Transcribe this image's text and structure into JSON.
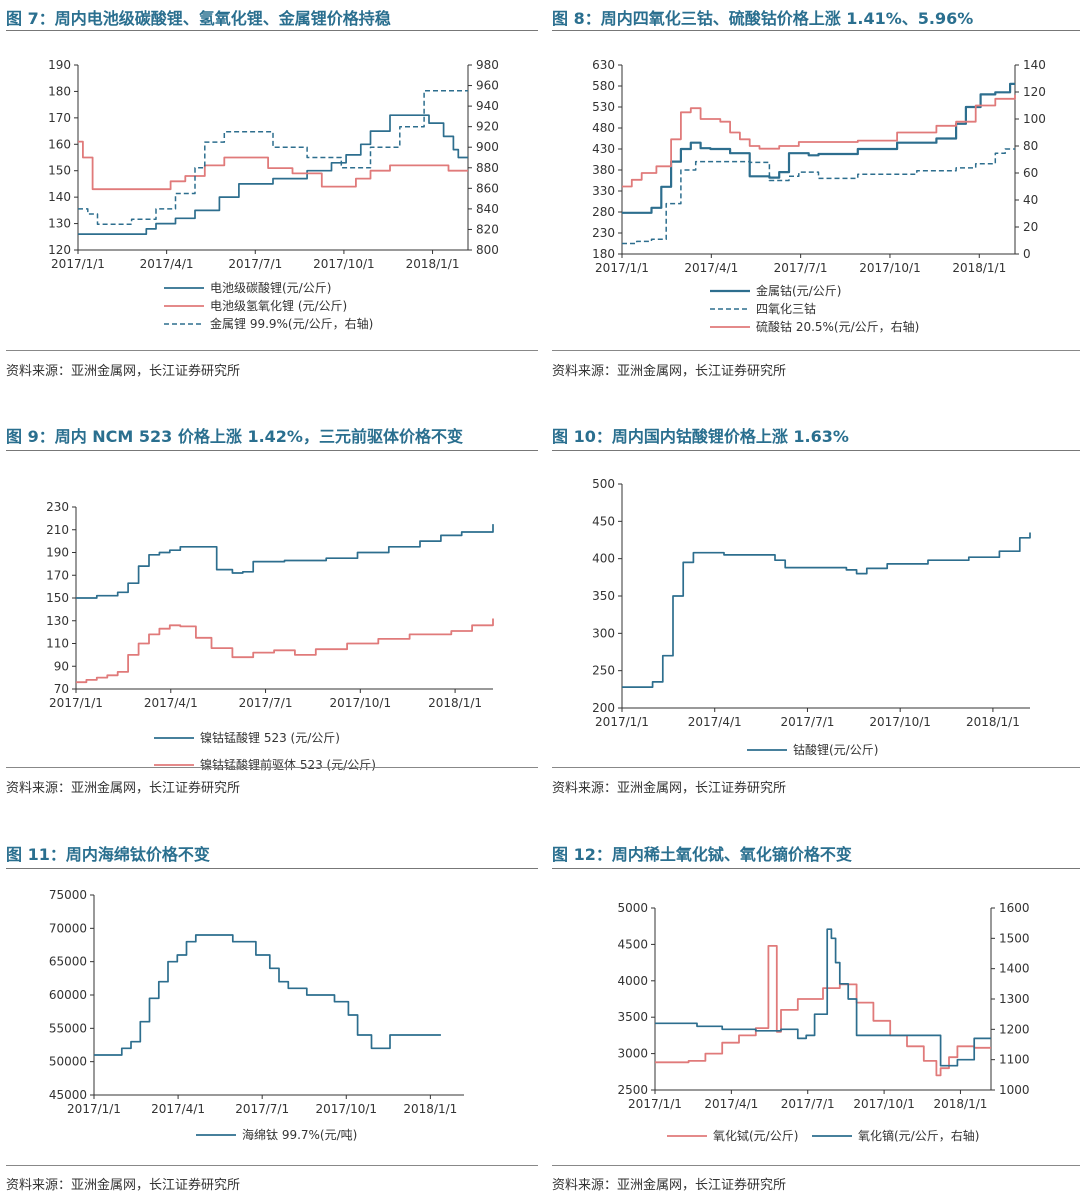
{
  "colors": {
    "blue": "#2d6e8e",
    "red": "#e07a7a",
    "title": "#2a6f8f",
    "axis": "#333333"
  },
  "source_text": "资料来源：亚洲金属网，长江证券研究所",
  "chart_data": [
    {
      "id": "fig7",
      "type": "line",
      "title": "图 7：周内电池级碳酸锂、氢氧化锂、金属锂价格持稳",
      "x_ticks": [
        "2017/1/1",
        "2017/4/1",
        "2017/7/1",
        "2017/10/1",
        "2018/1/1"
      ],
      "y_ticks": [
        "190",
        "180",
        "170",
        "160",
        "150",
        "140",
        "130",
        "120"
      ],
      "y2_ticks": [
        "980",
        "960",
        "940",
        "920",
        "900",
        "880",
        "860",
        "840",
        "820",
        "800"
      ],
      "ylim": [
        120,
        190
      ],
      "y2lim": [
        800,
        980
      ],
      "xlim": [
        0,
        400
      ],
      "series": [
        {
          "name": "电池级碳酸锂(元/公斤)",
          "axis": "left",
          "style": "blue",
          "x": [
            0,
            30,
            70,
            80,
            100,
            120,
            145,
            165,
            200,
            235,
            260,
            275,
            290,
            300,
            320,
            340,
            360,
            375,
            385,
            390,
            400
          ],
          "y": [
            126,
            126,
            128,
            130,
            132,
            135,
            140,
            145,
            147,
            150,
            153,
            156,
            160,
            165,
            171,
            171,
            168,
            163,
            158,
            155,
            155
          ]
        },
        {
          "name": "电池级氢氧化锂 (元/公斤)",
          "axis": "left",
          "style": "red",
          "x": [
            0,
            5,
            15,
            30,
            80,
            95,
            110,
            130,
            150,
            175,
            195,
            220,
            250,
            285,
            300,
            320,
            345,
            365,
            380,
            400
          ],
          "y": [
            161,
            155,
            143,
            143,
            143,
            146,
            148,
            152,
            155,
            155,
            151,
            149,
            144,
            147,
            150,
            152,
            152,
            152,
            150,
            150
          ]
        },
        {
          "name": "金属锂 99.9%(元/公斤，右轴)",
          "axis": "right",
          "style": "blue-dash",
          "x": [
            0,
            10,
            20,
            55,
            80,
            100,
            120,
            130,
            150,
            175,
            200,
            235,
            270,
            300,
            330,
            355,
            380,
            400
          ],
          "y": [
            840,
            835,
            825,
            830,
            840,
            855,
            880,
            905,
            915,
            915,
            900,
            890,
            880,
            900,
            920,
            955,
            955,
            955
          ]
        }
      ]
    },
    {
      "id": "fig8",
      "type": "line",
      "title": "图 8：周内四氧化三钴、硫酸钴价格上涨 1.41%、5.96%",
      "x_ticks": [
        "2017/1/1",
        "2017/4/1",
        "2017/7/1",
        "2017/10/1",
        "2018/1/1"
      ],
      "y_ticks": [
        "630",
        "580",
        "530",
        "480",
        "430",
        "380",
        "330",
        "280",
        "230",
        "180"
      ],
      "y2_ticks": [
        "140",
        "120",
        "100",
        "80",
        "60",
        "40",
        "20",
        "0"
      ],
      "ylim": [
        180,
        630
      ],
      "y2lim": [
        0,
        140
      ],
      "xlim": [
        0,
        400
      ],
      "series": [
        {
          "name": "金属钴(元/公斤)",
          "axis": "left",
          "style": "blue-thick",
          "x": [
            0,
            10,
            30,
            40,
            50,
            60,
            70,
            80,
            90,
            110,
            130,
            150,
            160,
            170,
            180,
            190,
            200,
            240,
            280,
            320,
            340,
            350,
            365,
            380,
            395,
            400
          ],
          "y": [
            278,
            278,
            290,
            340,
            400,
            430,
            445,
            432,
            430,
            420,
            365,
            362,
            375,
            420,
            420,
            415,
            418,
            430,
            445,
            455,
            490,
            530,
            560,
            565,
            585,
            585
          ]
        },
        {
          "name": "四氧化三钴",
          "axis": "left",
          "style": "blue-dash",
          "x": [
            0,
            15,
            30,
            45,
            60,
            75,
            90,
            110,
            130,
            150,
            170,
            180,
            200,
            240,
            300,
            340,
            360,
            380,
            390,
            400
          ],
          "y": [
            205,
            210,
            215,
            300,
            380,
            400,
            400,
            400,
            398,
            355,
            365,
            375,
            360,
            370,
            378,
            385,
            395,
            420,
            430,
            430
          ]
        },
        {
          "name": "硫酸钴 20.5%(元/公斤，右轴)",
          "axis": "right",
          "style": "red",
          "x": [
            0,
            10,
            20,
            35,
            50,
            60,
            70,
            80,
            100,
            110,
            120,
            130,
            140,
            160,
            180,
            200,
            240,
            280,
            320,
            340,
            360,
            380,
            400
          ],
          "y": [
            50,
            55,
            60,
            65,
            85,
            105,
            108,
            100,
            98,
            90,
            85,
            80,
            78,
            80,
            83,
            83,
            84,
            90,
            95,
            98,
            110,
            115,
            118
          ]
        }
      ]
    },
    {
      "id": "fig9",
      "type": "line",
      "title": "图 9：周内 NCM 523 价格上涨 1.42%，三元前驱体价格不变",
      "x_ticks": [
        "2017/1/1",
        "2017/4/1",
        "2017/7/1",
        "2017/10/1",
        "2018/1/1"
      ],
      "y_ticks": [
        "230",
        "210",
        "190",
        "170",
        "150",
        "130",
        "110",
        "90",
        "70"
      ],
      "ylim": [
        70,
        230
      ],
      "xlim": [
        0,
        400
      ],
      "series": [
        {
          "name": "镍钴锰酸锂 523 (元/公斤)",
          "axis": "left",
          "style": "blue",
          "x": [
            0,
            20,
            40,
            50,
            60,
            70,
            80,
            90,
            100,
            110,
            125,
            135,
            150,
            160,
            170,
            200,
            240,
            270,
            300,
            330,
            350,
            370,
            400
          ],
          "y": [
            150,
            152,
            155,
            163,
            178,
            188,
            190,
            192,
            195,
            195,
            195,
            175,
            172,
            173,
            182,
            183,
            185,
            190,
            195,
            200,
            205,
            208,
            215
          ]
        },
        {
          "name": "镍钴锰酸锂前驱体 523 (元/公斤)",
          "axis": "left",
          "style": "red",
          "x": [
            0,
            10,
            20,
            30,
            40,
            50,
            60,
            70,
            80,
            90,
            100,
            115,
            130,
            150,
            170,
            190,
            210,
            230,
            260,
            290,
            320,
            340,
            360,
            380,
            400
          ],
          "y": [
            76,
            78,
            80,
            82,
            85,
            100,
            110,
            118,
            123,
            126,
            125,
            115,
            106,
            98,
            102,
            104,
            100,
            105,
            110,
            114,
            118,
            118,
            121,
            126,
            132
          ]
        }
      ]
    },
    {
      "id": "fig10",
      "type": "line",
      "title": "图 10：周内国内钴酸锂价格上涨 1.63%",
      "x_ticks": [
        "2017/1/1",
        "2017/4/1",
        "2017/7/1",
        "2017/10/1",
        "2018/1/1"
      ],
      "y_ticks": [
        "500",
        "450",
        "400",
        "350",
        "300",
        "250",
        "200"
      ],
      "ylim": [
        200,
        500
      ],
      "xlim": [
        0,
        400
      ],
      "series": [
        {
          "name": "钴酸锂(元/公斤)",
          "axis": "left",
          "style": "blue",
          "x": [
            0,
            15,
            30,
            40,
            50,
            60,
            70,
            80,
            100,
            140,
            150,
            160,
            200,
            220,
            230,
            240,
            260,
            300,
            340,
            370,
            390,
            400
          ],
          "y": [
            228,
            228,
            235,
            270,
            350,
            395,
            408,
            408,
            405,
            405,
            398,
            388,
            388,
            385,
            380,
            387,
            393,
            398,
            402,
            410,
            428,
            435
          ]
        }
      ]
    },
    {
      "id": "fig11",
      "type": "line",
      "title": "图 11：周内海绵钛价格不变",
      "x_ticks": [
        "2017/1/1",
        "2017/4/1",
        "2017/7/1",
        "2017/10/1",
        "2018/1/1"
      ],
      "y_ticks": [
        "75000",
        "70000",
        "65000",
        "60000",
        "55000",
        "50000",
        "45000"
      ],
      "ylim": [
        45000,
        75000
      ],
      "xlim": [
        0,
        400
      ],
      "series": [
        {
          "name": "海绵钛 99.7%(元/吨)",
          "axis": "left",
          "style": "blue",
          "x": [
            0,
            20,
            30,
            40,
            50,
            60,
            70,
            80,
            90,
            100,
            110,
            125,
            150,
            175,
            190,
            200,
            210,
            230,
            260,
            275,
            285,
            300,
            320,
            375
          ],
          "y": [
            51000,
            51000,
            52000,
            53000,
            56000,
            59500,
            62000,
            65000,
            66000,
            68000,
            69000,
            69000,
            68000,
            66000,
            64000,
            62000,
            61000,
            60000,
            59000,
            57000,
            54000,
            52000,
            54000,
            54000
          ]
        }
      ]
    },
    {
      "id": "fig12",
      "type": "line",
      "title": "图 12：周内稀土氧化铽、氧化镝价格不变",
      "x_ticks": [
        "2017/1/1",
        "2017/4/1",
        "2017/7/1",
        "2017/10/1",
        "2018/1/1"
      ],
      "y_ticks": [
        "5000",
        "4500",
        "4000",
        "3500",
        "3000",
        "2500"
      ],
      "y2_ticks": [
        "1600",
        "1500",
        "1400",
        "1300",
        "1200",
        "1100",
        "1000"
      ],
      "ylim": [
        2500,
        5000
      ],
      "y2lim": [
        1000,
        1600
      ],
      "xlim": [
        0,
        400
      ],
      "series": [
        {
          "name": "氧化铽(元/公斤)",
          "axis": "left",
          "style": "red",
          "x": [
            0,
            40,
            60,
            80,
            100,
            120,
            135,
            140,
            145,
            148,
            150,
            170,
            200,
            220,
            240,
            260,
            280,
            300,
            320,
            335,
            340,
            350,
            360,
            380,
            400
          ],
          "y": [
            2880,
            2900,
            3000,
            3150,
            3250,
            3350,
            4480,
            4480,
            3300,
            3300,
            3600,
            3750,
            3900,
            3950,
            3700,
            3450,
            3250,
            3100,
            2900,
            2700,
            2800,
            2950,
            3100,
            3080,
            3080
          ]
        },
        {
          "name": "氧化镝(元/公斤，右轴)",
          "axis": "right",
          "style": "blue",
          "x": [
            0,
            50,
            80,
            120,
            150,
            170,
            180,
            190,
            205,
            210,
            215,
            220,
            230,
            240,
            260,
            290,
            320,
            340,
            360,
            380,
            400
          ],
          "y": [
            1220,
            1210,
            1200,
            1195,
            1200,
            1170,
            1180,
            1250,
            1530,
            1500,
            1420,
            1350,
            1300,
            1180,
            1180,
            1180,
            1180,
            1080,
            1100,
            1170,
            1170
          ]
        }
      ]
    }
  ]
}
